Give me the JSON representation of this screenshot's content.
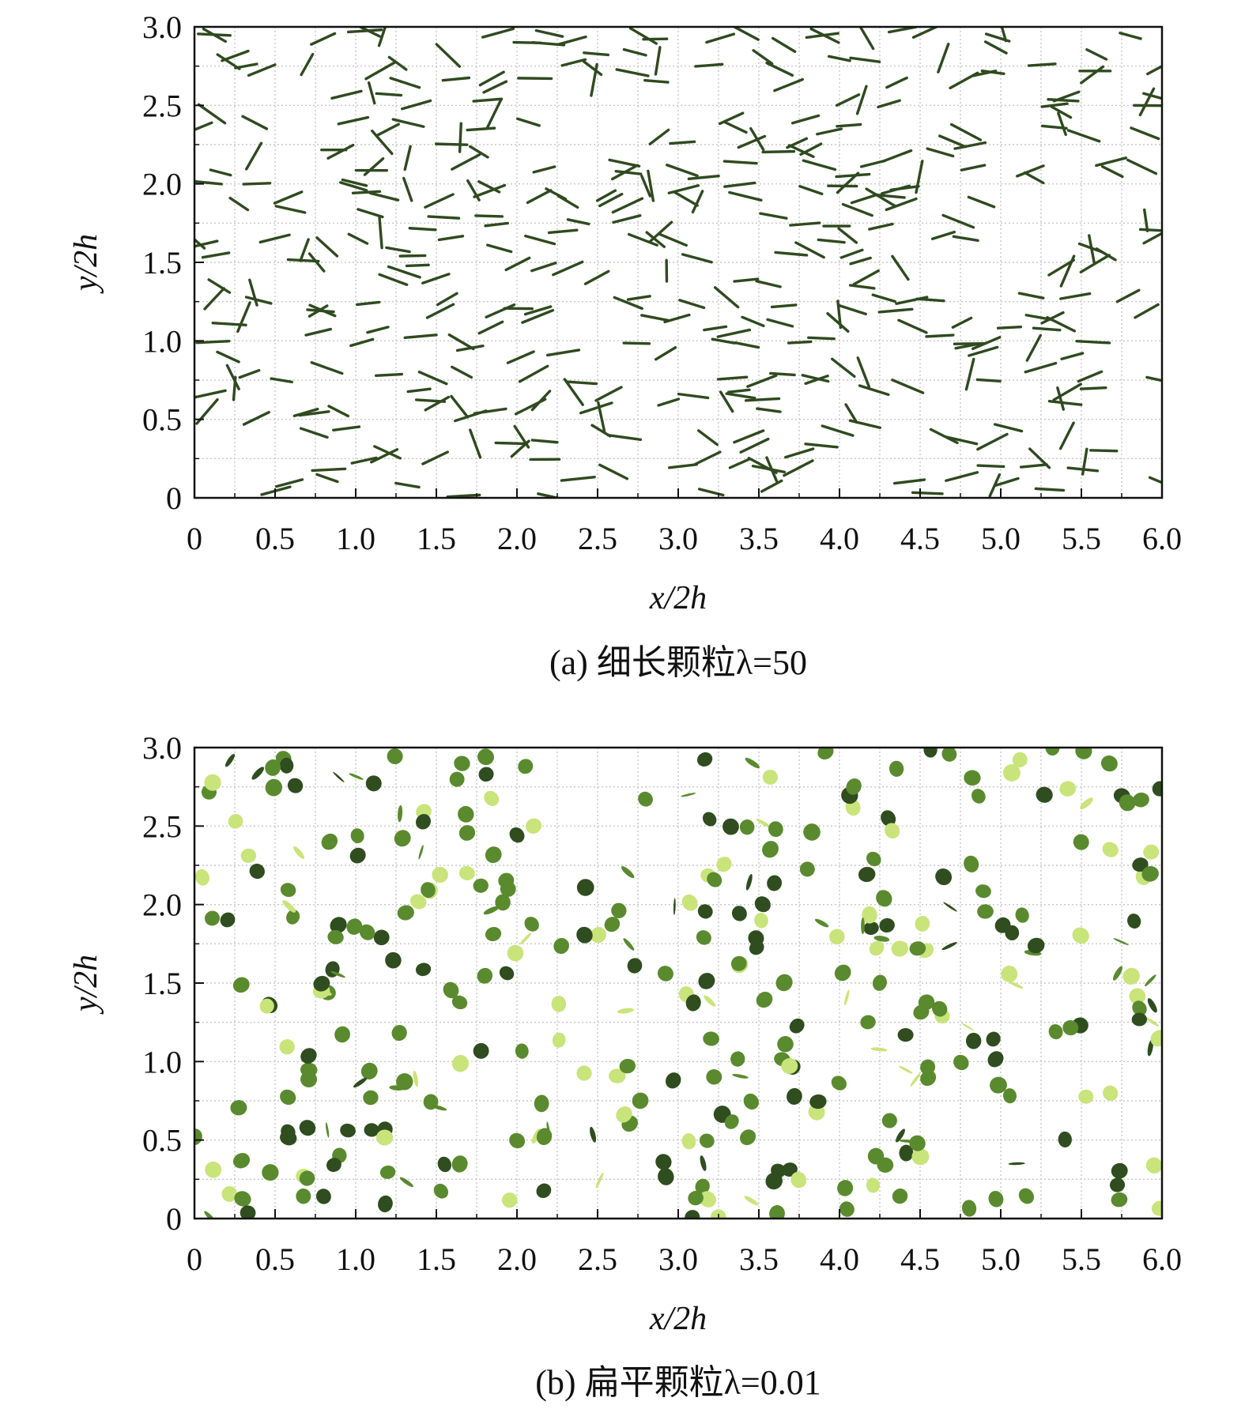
{
  "chart_data": [
    {
      "type": "scatter",
      "caption": "(a) 细长颗粒λ=50",
      "xlabel": "x/2h",
      "ylabel": "y/2h",
      "xlim": [
        0,
        6.0
      ],
      "ylim": [
        0,
        3.0
      ],
      "x_ticks": [
        "0",
        "0.5",
        "1.0",
        "1.5",
        "2.0",
        "2.5",
        "3.0",
        "3.5",
        "4.0",
        "4.5",
        "5.0",
        "5.5",
        "6.0"
      ],
      "y_ticks": [
        "0",
        "0.5",
        "1.0",
        "1.5",
        "2.0",
        "2.5",
        "3.0"
      ],
      "grid": true,
      "marker": "needle",
      "colors": {
        "particle": "#2f4a1f"
      },
      "particle_count_estimate": 420
    },
    {
      "type": "scatter",
      "caption": "(b) 扁平颗粒λ=0.01",
      "xlabel": "x/2h",
      "ylabel": "y/2h",
      "xlim": [
        0,
        6.0
      ],
      "ylim": [
        0,
        3.0
      ],
      "x_ticks": [
        "0",
        "0.5",
        "1.0",
        "1.5",
        "2.0",
        "2.5",
        "3.0",
        "3.5",
        "4.0",
        "4.5",
        "5.0",
        "5.5",
        "6.0"
      ],
      "y_ticks": [
        "0",
        "0.5",
        "1.0",
        "1.5",
        "2.0",
        "2.5",
        "3.0"
      ],
      "grid": true,
      "marker": "disk",
      "colors": {
        "particle_dark": "#2f4d1f",
        "particle_mid": "#5a8a2e",
        "particle_light": "#c9e47a"
      },
      "particle_count_estimate": 340
    }
  ]
}
